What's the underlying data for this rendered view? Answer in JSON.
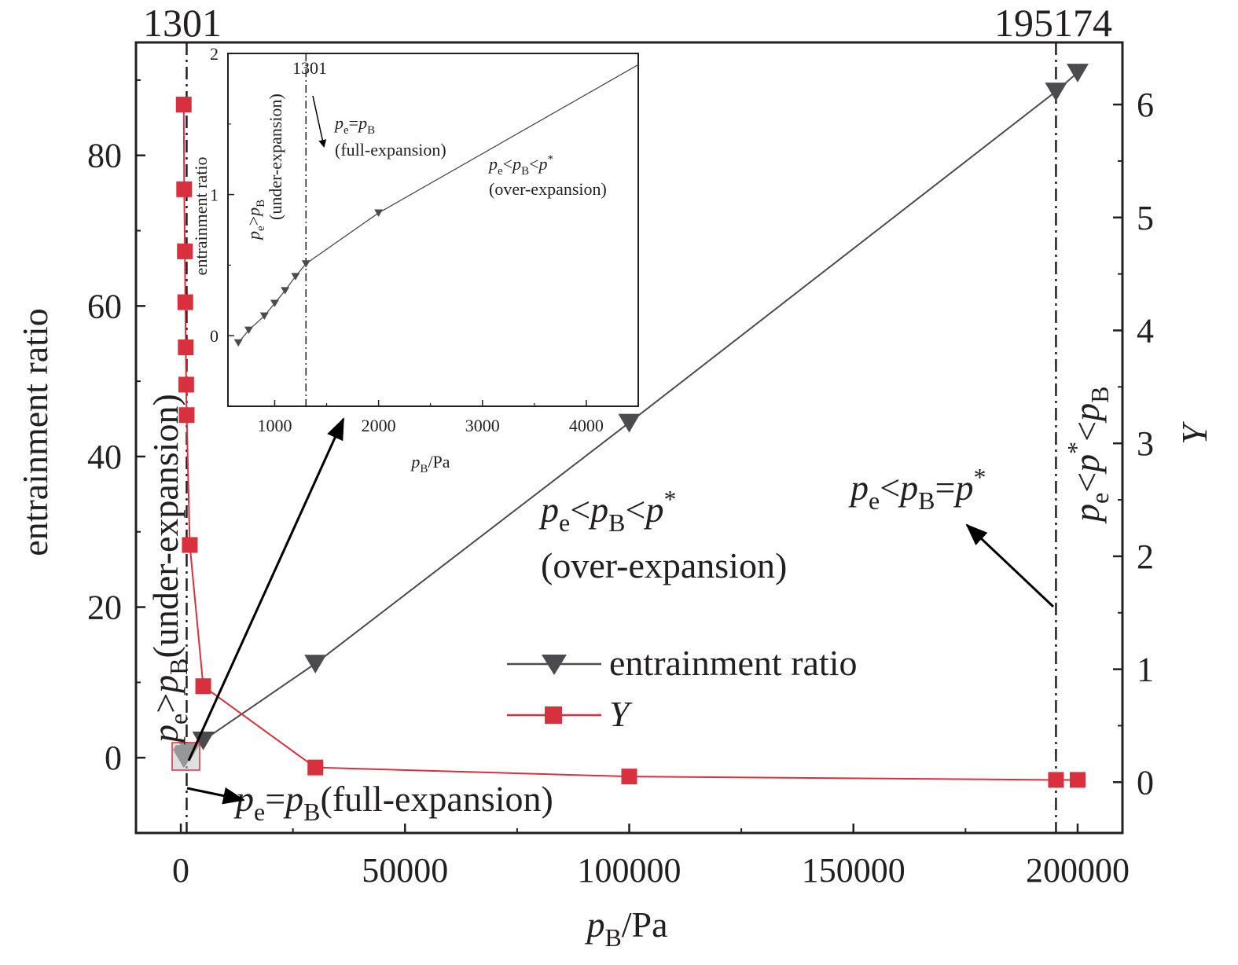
{
  "chart_data": {
    "type": "line",
    "xlabel": "p_B/Pa",
    "ylabel_left": "entrainment ratio",
    "ylabel_right": "Y",
    "xlim": [
      -10000,
      210000
    ],
    "ylim_left": [
      -10,
      95
    ],
    "ylim_right": [
      -0.45,
      6.55
    ],
    "x_ticks": [
      0,
      50000,
      100000,
      150000,
      200000
    ],
    "y_ticks_left": [
      0,
      20,
      40,
      60,
      80
    ],
    "y_ticks_right": [
      0,
      1,
      2,
      3,
      4,
      5,
      6
    ],
    "top_markers": [
      {
        "label": "1301",
        "x": 1301
      },
      {
        "label": "195174",
        "x": 195174
      }
    ],
    "series": [
      {
        "name": "entrainment ratio",
        "axis": "left",
        "marker": "triangle-down",
        "color": "#4a4a4f",
        "x": [
          650,
          750,
          900,
          1000,
          1100,
          1200,
          1301,
          2000,
          5000,
          30000,
          100000,
          195174,
          200000
        ],
        "y": [
          -0.05,
          0.04,
          0.14,
          0.23,
          0.32,
          0.42,
          0.51,
          0.87,
          2.3,
          12.5,
          44.5,
          88.5,
          91.0
        ]
      },
      {
        "name": "Y",
        "axis": "right",
        "marker": "square",
        "color": "#d9303e",
        "x": [
          650,
          750,
          900,
          1000,
          1100,
          1200,
          1301,
          2000,
          5000,
          30000,
          100000,
          195174,
          200000
        ],
        "y": [
          6.0,
          5.25,
          4.7,
          4.25,
          3.85,
          3.52,
          3.25,
          2.1,
          0.85,
          0.13,
          0.05,
          0.02,
          0.02
        ]
      }
    ],
    "annotations": {
      "under_expansion": "(under-expansion)",
      "full_expansion": "(full-expansion)",
      "over_expansion": "(over-expansion)",
      "value_1301": "1301",
      "value_195174": "195174"
    },
    "inset": {
      "xlabel": "p_B/Pa",
      "ylabel": "entrainment ratio",
      "xlim": [
        550,
        4500
      ],
      "ylim": [
        -0.5,
        2.0
      ],
      "x_ticks": [
        1000,
        2000,
        3000,
        4000
      ],
      "y_ticks": [
        0,
        1,
        2
      ],
      "vline_label": "1301",
      "line_x": [
        650,
        750,
        900,
        1000,
        1100,
        1200,
        1301,
        2000,
        4500
      ],
      "line_y": [
        -0.05,
        0.04,
        0.14,
        0.23,
        0.32,
        0.42,
        0.51,
        0.87,
        1.92
      ],
      "marker_x": [
        650,
        750,
        900,
        1000,
        1100,
        1200,
        1301,
        2000
      ],
      "marker_y": [
        -0.05,
        0.04,
        0.14,
        0.23,
        0.32,
        0.42,
        0.51,
        0.87
      ],
      "under_label": "(under-expansion)",
      "full_label": "(full-expansion)",
      "over_label": "(over-expansion)"
    },
    "legend_position": "center"
  }
}
